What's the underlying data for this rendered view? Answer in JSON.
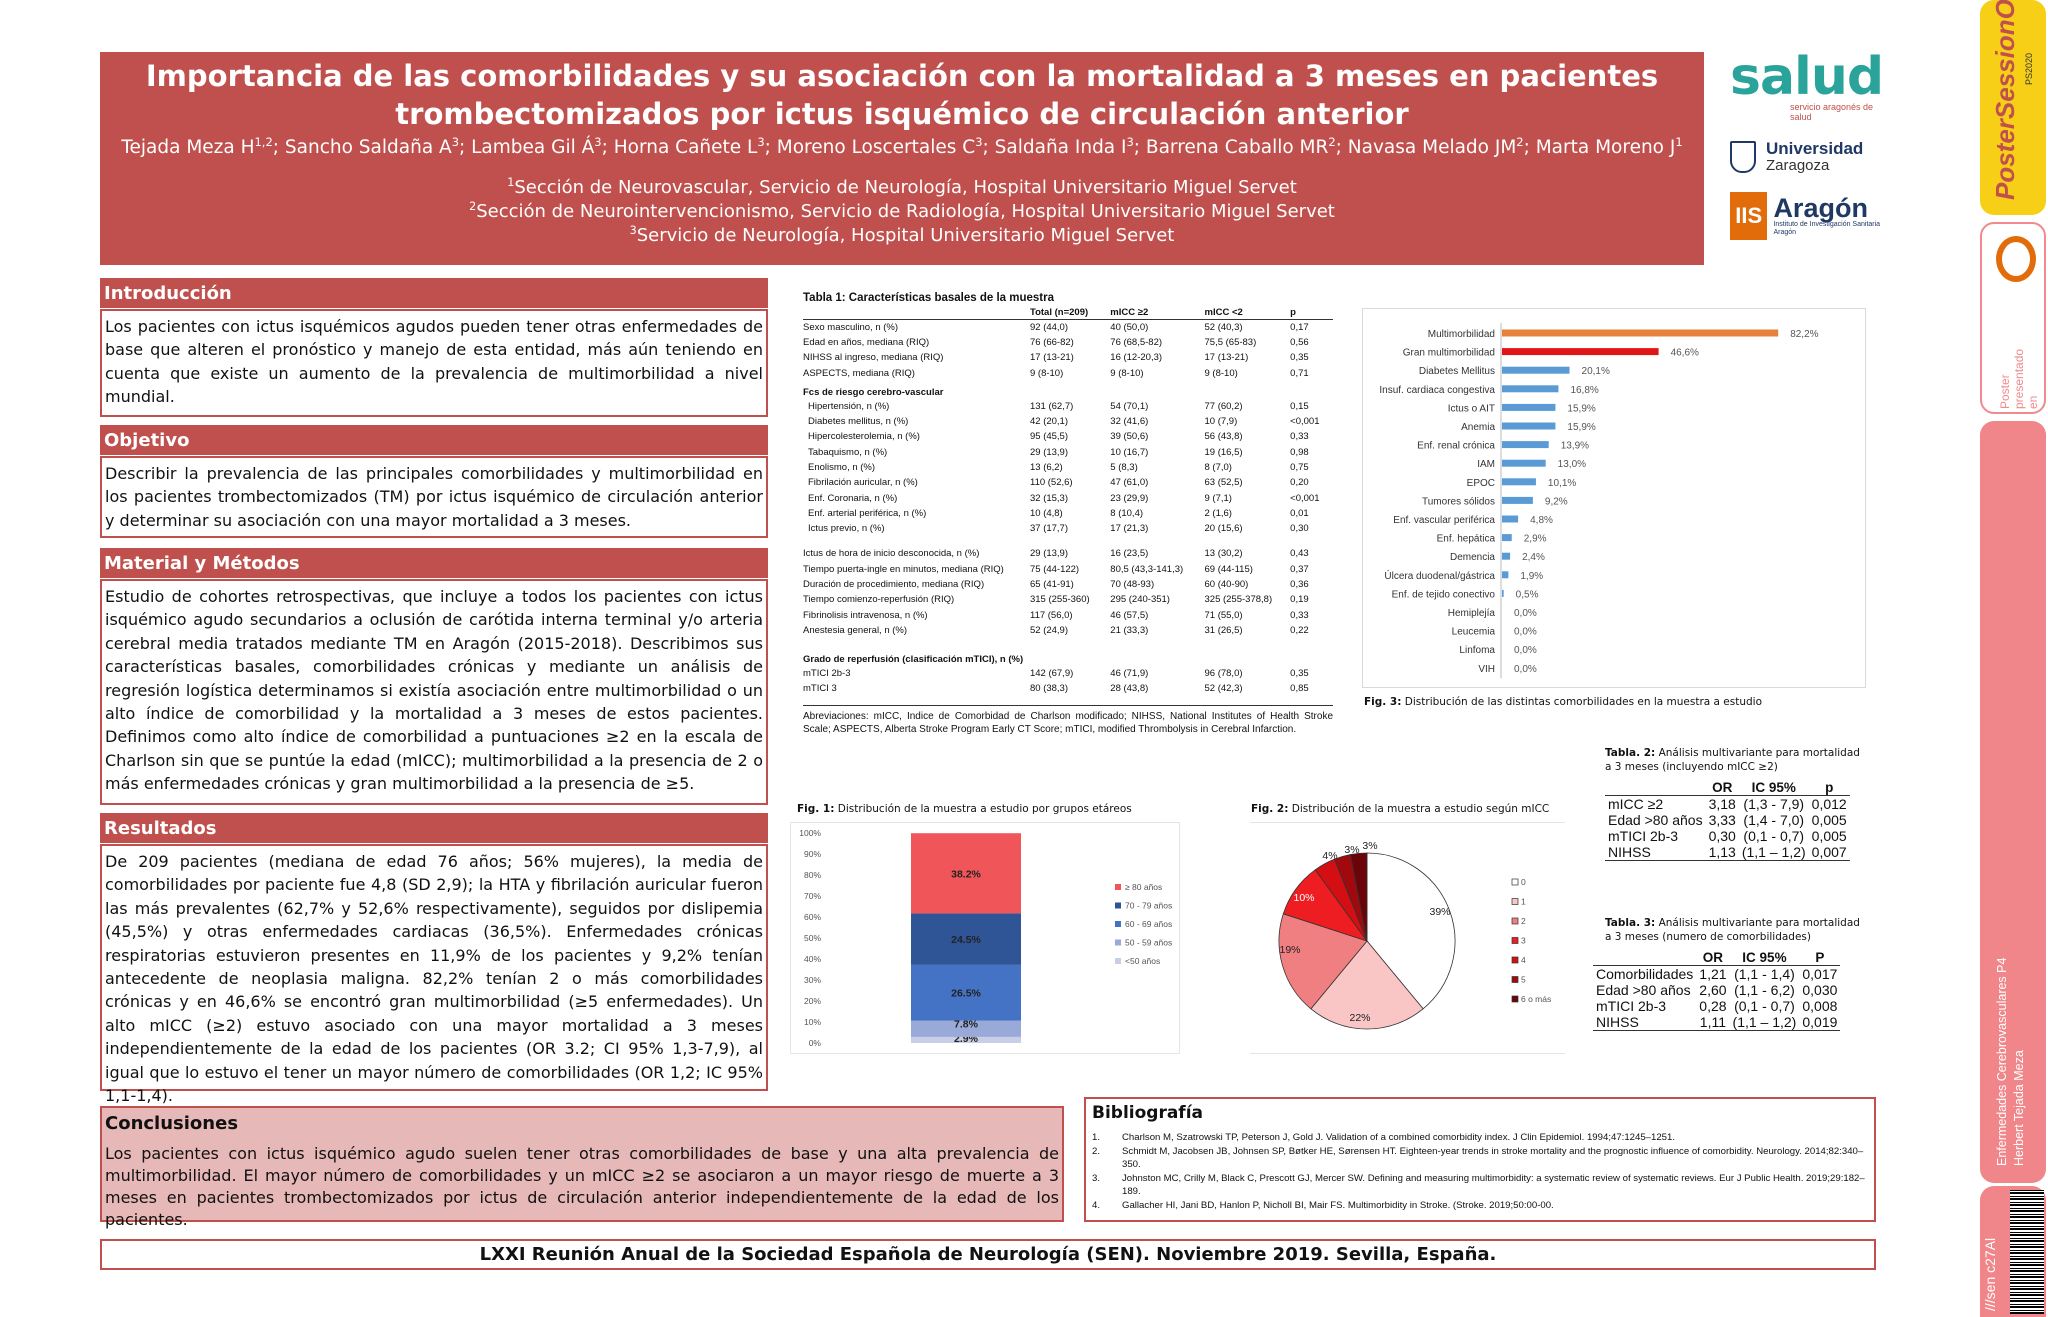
{
  "header": {
    "title_line1": "Importancia de las comorbilidades y su asociación con la mortalidad a 3 meses en pacientes",
    "title_line2": "trombectomizados por ictus isquémico de circulación anterior",
    "authors": [
      {
        "name": "Tejada Meza H",
        "sup": "1,2",
        "sep": "; "
      },
      {
        "name": "Sancho Saldaña A",
        "sup": "3",
        "sep": "; "
      },
      {
        "name": "Lambea Gil Á",
        "sup": "3",
        "sep": "; "
      },
      {
        "name": "Horna Cañete L",
        "sup": "3",
        "sep": "; "
      },
      {
        "name": "Moreno Loscertales C",
        "sup": "3",
        "sep": "; "
      },
      {
        "name": "Saldaña Inda I",
        "sup": "3",
        "sep": "; "
      },
      {
        "name": "Barrena Caballo MR",
        "sup": "2",
        "sep": "; "
      },
      {
        "name": "Navasa Melado JM",
        "sup": "2",
        "sep": "; "
      },
      {
        "name": "Marta Moreno J",
        "sup": "1",
        "sep": ""
      }
    ],
    "affiliations": [
      {
        "sup": "1",
        "text": "Sección de Neurovascular, Servicio de Neurología, Hospital Universitario Miguel Servet"
      },
      {
        "sup": "2",
        "text": "Sección de Neurointervencionismo, Servicio de Radiología, Hospital Universitario Miguel Servet"
      },
      {
        "sup": "3",
        "text": "Servicio de Neurología, Hospital Universitario Miguel Servet"
      }
    ]
  },
  "logos": {
    "salud": "salud",
    "salud_sub": "servicio aragonés de salud",
    "uz_line1": "Universidad",
    "uz_line2": "Zaragoza",
    "iis_box": "IIS",
    "iis_word": "Aragón",
    "iis_sub": "Instituto de Investigación Sanitaria Aragón"
  },
  "sections": {
    "intro": {
      "title": "Introducción",
      "text": "Los pacientes con ictus isquémicos agudos pueden tener otras enfermedades de base que alteren el pronóstico y manejo de esta entidad, más aún teniendo en cuenta que existe un aumento de la prevalencia de multimorbilidad a nivel mundial."
    },
    "objetivo": {
      "title": "Objetivo",
      "text": "Describir la prevalencia de las principales comorbilidades y multimorbilidad en los pacientes trombectomizados (TM) por ictus isquémico de circulación anterior y determinar su asociación con una mayor mortalidad a 3 meses."
    },
    "metodos": {
      "title": "Material y Métodos",
      "text": "Estudio de cohortes retrospectivas, que incluye a todos los pacientes con ictus isquémico agudo secundarios a oclusión de carótida interna terminal y/o arteria cerebral media tratados mediante TM en Aragón (2015-2018). Describimos sus características basales, comorbilidades crónicas y mediante un análisis de regresión logística determinamos si existía asociación entre multimorbilidad o un alto índice de comorbilidad y la mortalidad a 3 meses de estos pacientes. Definimos como alto índice de comorbilidad a puntuaciones ≥2 en la escala de Charlson sin que se puntúe la edad (mICC); multimorbilidad a la presencia de 2 o más enfermedades crónicas y gran multimorbilidad a la presencia de ≥5."
    },
    "resultados": {
      "title": "Resultados",
      "text": "De 209 pacientes (mediana de edad 76 años; 56% mujeres), la media de comorbilidades por paciente fue 4,8 (SD 2,9); la HTA y fibrilación auricular fueron las más prevalentes (62,7% y 52,6% respectivamente), seguidos por dislipemia (45,5%) y otras enfermedades cardiacas (36,5%). Enfermedades crónicas respiratorias estuvieron presentes en 11,9% de los pacientes y 9,2% tenían antecedente de neoplasia maligna. 82,2% tenían 2 o más comorbilidades crónicas y en 46,6% se encontró gran multimorbilidad (≥5 enfermedades). Un alto mICC (≥2) estuvo asociado con una mayor mortalidad a 3 meses independientemente de la edad de los pacientes (OR 3.2; CI 95% 1,3-7,9), al igual que lo estuvo el tener un mayor número de comorbilidades (OR 1,2; IC 95% 1,1-1,4)."
    },
    "conclusiones": {
      "title": "Conclusiones",
      "text": "Los pacientes con ictus isquémico agudo suelen tener otras comorbilidades de base y una alta prevalencia de multimorbilidad. El mayor número de comorbilidades y un mICC ≥2 se asociaron a un mayor riesgo de muerte a 3 meses en pacientes trombectomizados por ictus de circulación anterior independientemente de la edad de los pacientes."
    }
  },
  "table1": {
    "title": "Tabla 1: Características basales de la muestra",
    "headers": [
      "",
      "Total (n=209)",
      "mICC ≥2",
      "mICC <2",
      "p"
    ],
    "rows": [
      {
        "c": [
          "Sexo masculino, n (%)",
          "92 (44,0)",
          "40 (50,0)",
          "52 (40,3)",
          "0,17"
        ]
      },
      {
        "c": [
          "Edad en años, mediana (RIQ)",
          "76 (66-82)",
          "76 (68,5-82)",
          "75,5 (65-83)",
          "0,56"
        ]
      },
      {
        "c": [
          "NIHSS al ingreso, mediana (RIQ)",
          "17 (13-21)",
          "16 (12-20,3)",
          "17 (13-21)",
          "0,35"
        ]
      },
      {
        "c": [
          "ASPECTS, mediana (RIQ)",
          "9 (8-10)",
          "9 (8-10)",
          "9 (8-10)",
          "0,71"
        ]
      },
      {
        "group": "Fcs de riesgo cerebro-vascular"
      },
      {
        "ind": true,
        "c": [
          "Hipertensión, n (%)",
          "131 (62,7)",
          "54 (70,1)",
          "77 (60,2)",
          "0,15"
        ]
      },
      {
        "ind": true,
        "c": [
          "Diabetes mellitus, n (%)",
          "42 (20,1)",
          "32 (41,6)",
          "10 (7,9)",
          "<0,001"
        ]
      },
      {
        "ind": true,
        "c": [
          "Hipercolesterolemia, n (%)",
          "95 (45,5)",
          "39 (50,6)",
          "56 (43,8)",
          "0,33"
        ]
      },
      {
        "ind": true,
        "c": [
          "Tabaquismo, n (%)",
          "29 (13,9)",
          "10 (16,7)",
          "19 (16,5)",
          "0,98"
        ]
      },
      {
        "ind": true,
        "c": [
          "Enolismo, n (%)",
          "13 (6,2)",
          "5 (8,3)",
          "8 (7,0)",
          "0,75"
        ]
      },
      {
        "ind": true,
        "c": [
          "Fibrilación auricular, n (%)",
          "110 (52,6)",
          "47 (61,0)",
          "63 (52,5)",
          "0,20"
        ]
      },
      {
        "ind": true,
        "c": [
          "Enf. Coronaria, n (%)",
          "32 (15,3)",
          "23 (29,9)",
          "9 (7,1)",
          "<0,001"
        ]
      },
      {
        "ind": true,
        "c": [
          "Enf. arterial periférica, n (%)",
          "10 (4,8)",
          "8 (10,4)",
          "2 (1,6)",
          "0,01"
        ]
      },
      {
        "ind": true,
        "c": [
          "Ictus previo, n (%)",
          "37 (17,7)",
          "17 (21,3)",
          "20 (15,6)",
          "0,30"
        ]
      },
      {
        "gap": true
      },
      {
        "c": [
          "Ictus de hora de inicio desconocida, n (%)",
          "29 (13,9)",
          "16 (23,5)",
          "13 (30,2)",
          "0,43"
        ]
      },
      {
        "c": [
          "Tiempo puerta-ingle en minutos, mediana (RIQ)",
          "75 (44-122)",
          "80,5 (43,3-141,3)",
          "69 (44-115)",
          "0,37"
        ]
      },
      {
        "c": [
          "Duración de procedimiento, mediana (RIQ)",
          "65 (41-91)",
          "70 (48-93)",
          "60 (40-90)",
          "0,36"
        ]
      },
      {
        "c": [
          "Tiempo comienzo-reperfusión (RIQ)",
          "315 (255-360)",
          "295 (240-351)",
          "325 (255-378,8)",
          "0,19"
        ]
      },
      {
        "c": [
          "Fibrinolisis intravenosa, n (%)",
          "117 (56,0)",
          "46 (57,5)",
          "71 (55,0)",
          "0,33"
        ]
      },
      {
        "c": [
          "Anestesia general, n (%)",
          "52 (24,9)",
          "21 (33,3)",
          "31 (26,5)",
          "0,22"
        ]
      },
      {
        "gap": true
      },
      {
        "group": "Grado de reperfusión (clasificación mTICI), n (%)"
      },
      {
        "c": [
          "mTICI 2b-3",
          "142 (67,9)",
          "46 (71,9)",
          "96 (78,0)",
          "0,35"
        ]
      },
      {
        "c": [
          "mTICI 3",
          "80 (38,3)",
          "28 (43,8)",
          "52 (42,3)",
          "0,85"
        ]
      }
    ],
    "abbrev": "Abreviaciones: mICC, Indice de Comorbidad de Charlson modificado; NIHSS, National Institutes of Health Stroke Scale; ASPECTS, Alberta Stroke Program Early CT Score; mTICI, modified Thrombolysis in Cerebral Infarction."
  },
  "chart_data": [
    {
      "type": "bar",
      "orientation": "horizontal",
      "caption_label": "Fig. 3:",
      "caption": "Distribución de las distintas comorbilidades en la muestra a estudio",
      "categories": [
        "Multimorbilidad",
        "Gran multimorbilidad",
        "Diabetes Mellitus",
        "Insuf. cardiaca congestiva",
        "Ictus o AIT",
        "Anemia",
        "Enf. renal crónica",
        "IAM",
        "EPOC",
        "Tumores sólidos",
        "Enf. vascular periférica",
        "Enf. hepática",
        "Demencia",
        "Úlcera duodenal/gástrica",
        "Enf. de tejido conectivo",
        "Hemiplejía",
        "Leucemia",
        "Linfoma",
        "VIH"
      ],
      "values": [
        82.2,
        46.6,
        20.1,
        16.8,
        15.9,
        15.9,
        13.9,
        13.0,
        10.1,
        9.2,
        4.8,
        2.9,
        2.4,
        1.9,
        0.5,
        0.0,
        0.0,
        0.0,
        0.0
      ],
      "labels": [
        "82,2%",
        "46,6%",
        "20,1%",
        "16,8%",
        "15,9%",
        "15,9%",
        "13,9%",
        "13,0%",
        "10,1%",
        "9,2%",
        "4,8%",
        "2,9%",
        "2,4%",
        "1,9%",
        "0,5%",
        "0,0%",
        "0,0%",
        "0,0%",
        "0,0%"
      ],
      "colors": [
        "#e6803a",
        "#e01515",
        "#5b9bd5"
      ],
      "xlim": [
        0,
        100
      ],
      "grid": false
    },
    {
      "type": "bar",
      "stacked": true,
      "caption_label": "Fig. 1:",
      "caption": "Distribución de la muestra a estudio por grupos etáreos",
      "yticks": [
        "0%",
        "10%",
        "20%",
        "30%",
        "40%",
        "50%",
        "60%",
        "70%",
        "80%",
        "90%",
        "100%"
      ],
      "ylim": [
        0,
        100
      ],
      "series": [
        {
          "name": "<50 años",
          "value": 2.9,
          "label": "2.9%",
          "color": "#c9cde6"
        },
        {
          "name": "50 - 59 años",
          "value": 7.8,
          "label": "7.8%",
          "color": "#9aaad8"
        },
        {
          "name": "60 - 69 años",
          "value": 26.5,
          "label": "26.5%",
          "color": "#4472c4"
        },
        {
          "name": "70 - 79 años",
          "value": 24.5,
          "label": "24.5%",
          "color": "#2f5597"
        },
        {
          "name": "≥ 80 años",
          "value": 38.2,
          "label": "38.2%",
          "color": "#f05559"
        }
      ],
      "legend": "right"
    },
    {
      "type": "pie",
      "caption_label": "Fig. 2:",
      "caption": "Distribución de la muestra a estudio según mICC",
      "slices": [
        {
          "name": "0",
          "value": 39,
          "label": "39%",
          "color": "#ffffff"
        },
        {
          "name": "1",
          "value": 22,
          "label": "22%",
          "color": "#f9c5c5"
        },
        {
          "name": "2",
          "value": 19,
          "label": "19%",
          "color": "#f07f82"
        },
        {
          "name": "3",
          "value": 10,
          "label": "10%",
          "color": "#ee1d22"
        },
        {
          "name": "4",
          "value": 4,
          "label": "4%",
          "color": "#d40f14"
        },
        {
          "name": "5",
          "value": 3,
          "label": "3%",
          "color": "#a00a0e"
        },
        {
          "name": "6 o más",
          "value": 3,
          "label": "3%",
          "color": "#6a0408"
        }
      ],
      "legend": "right"
    }
  ],
  "table2": {
    "caption_label": "Tabla. 2:",
    "caption": "Análisis multivariante para mortalidad a 3 meses (incluyendo mICC ≥2)",
    "headers": [
      "",
      "OR",
      "IC 95%",
      "p"
    ],
    "rows": [
      [
        "mICC ≥2",
        "3,18",
        "(1,3 - 7,9)",
        "0,012"
      ],
      [
        "Edad >80 años",
        "3,33",
        "(1,4 - 7,0)",
        "0,005"
      ],
      [
        "mTICI 2b-3",
        "0,30",
        "(0,1 - 0,7)",
        "0,005"
      ],
      [
        "NIHSS",
        "1,13",
        "(1,1 – 1,2)",
        "0,007"
      ]
    ]
  },
  "table3": {
    "caption_label": "Tabla. 3:",
    "caption": "Análisis multivariante para mortalidad a 3 meses (numero de comorbilidades)",
    "headers": [
      "",
      "OR",
      "IC 95%",
      "P"
    ],
    "rows": [
      [
        "Comorbilidades",
        "1,21",
        "(1,1 - 1,4)",
        "0,017"
      ],
      [
        "Edad >80 años",
        "2,60",
        "(1,1 - 6,2)",
        "0,030"
      ],
      [
        "mTICI 2b-3",
        "0,28",
        "(0,1 - 0,7)",
        "0,008"
      ],
      [
        "NIHSS",
        "1,11",
        "(1,1 – 1,2)",
        "0,019"
      ]
    ]
  },
  "bibliografia": {
    "title": "Bibliografía",
    "items": [
      {
        "n": "1.",
        "text": "Charlson M, Szatrowski TP, Peterson J, Gold J. Validation of a combined comorbidity index. J Clin Epidemiol. 1994;47:1245–1251."
      },
      {
        "n": "2.",
        "text": "Schmidt M, Jacobsen JB, Johnsen SP, Bøtker HE, Sørensen HT. Eighteen-year trends in stroke mortality and the prognostic influence of comorbidity. Neurology. 2014;82:340–350."
      },
      {
        "n": "3.",
        "text": "Johnston MC, Crilly M, Black C, Prescott GJ, Mercer SW. Defining and measuring multimorbidity: a systematic review of systematic reviews. Eur J Public Health. 2019;29:182–189."
      },
      {
        "n": "4.",
        "text": "Gallacher HI, Jani BD, Hanlon P, Nicholl BI, Mair FS. Multimorbidity in Stroke. (Stroke. 2019;50:00-00."
      }
    ]
  },
  "footer": "LXXI Reunión Anual de la Sociedad Española de Neurología (SEN). Noviembre 2019. Sevilla, España.",
  "rail": {
    "poster_session": "PosterSessionOnline",
    "ps_small": "PS2020",
    "presented_line1": "Poster",
    "presented_line2": "presentado",
    "presented_line3": "en",
    "category": "Enfermedades Cerebrovasculares P4",
    "author": "Herbert Tejada Meza",
    "code": "c27Al",
    "code2": "///sen"
  }
}
